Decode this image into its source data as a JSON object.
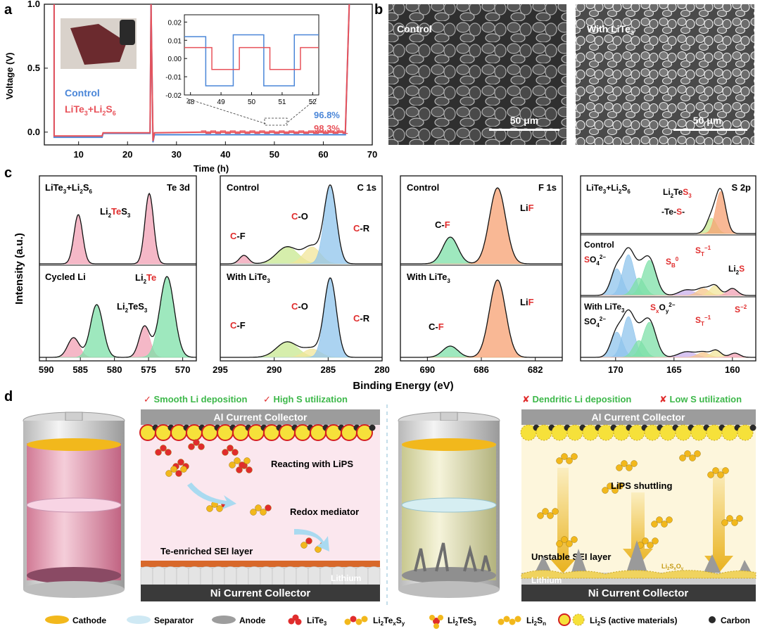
{
  "panel_labels": {
    "a": "a",
    "b": "b",
    "c": "c",
    "d": "d"
  },
  "panel_a": {
    "ylabel": "Voltage (V)",
    "xlabel": "Time (h)",
    "yticks": [
      "0.0",
      "0.5",
      "1.0"
    ],
    "xticks": [
      "10",
      "20",
      "30",
      "40",
      "50",
      "60",
      "70"
    ],
    "legend": {
      "control": "Control",
      "lite": "LiTe3+Li2S6"
    },
    "ce_control": "96.8%",
    "ce_lite": "98.3%",
    "colors": {
      "control": "#4a86d8",
      "lite": "#e8525a"
    },
    "inset": {
      "yticks": [
        "0.02",
        "0.01",
        "0.00",
        "-0.01",
        "-0.02"
      ],
      "xticks": [
        "48",
        "49",
        "50",
        "51",
        "52"
      ]
    }
  },
  "panel_b": {
    "left_label": "Control",
    "right_label": "With LiTe3",
    "scale_left": "50 μm",
    "scale_right": "50 μm"
  },
  "panel_c": {
    "ylabel": "Intensity (a.u.)",
    "xlabel": "Binding Energy (eV)",
    "te": {
      "top_left": "LiTe3+Li2S6",
      "top_right": "Te 3d",
      "bottom_left": "Cycled Li",
      "xticks": [
        "590",
        "585",
        "580",
        "575",
        "570"
      ]
    },
    "c1s": {
      "top_left": "Control",
      "top_right": "C 1s",
      "bottom_left": "With LiTe3",
      "xticks": [
        "295",
        "290",
        "285",
        "280"
      ]
    },
    "f1s": {
      "top_left": "Control",
      "top_right": "F 1s",
      "bottom_left": "With LiTe3",
      "xticks": [
        "690",
        "686",
        "682"
      ]
    },
    "s2p": {
      "top_left": "LiTe3+Li2S6",
      "top_right": "S 2p",
      "mid_left": "Control",
      "bottom_left": "With LiTe3",
      "xticks": [
        "170",
        "165",
        "160"
      ]
    },
    "peaks": {
      "cf": "C-F",
      "co": "C-O",
      "cr": "C-R",
      "lif": "LiF",
      "tes": "-Te-S-"
    }
  },
  "panel_d": {
    "left_checks": [
      "Smooth Li deposition",
      "High S utilization"
    ],
    "right_crosses": [
      "Dendritic Li deposition",
      "Low S utilization"
    ],
    "al": "Al Current Collector",
    "ni": "Ni Current Collector",
    "left_notes": [
      "Reacting with LiPS",
      "Redox mediator",
      "Te-enriched SEI layer",
      "Lithium"
    ],
    "right_notes": [
      "LiPS shuttling",
      "Unstable SEI layer",
      "Lithium"
    ],
    "legend": [
      "Cathode",
      "Separator",
      "Anode",
      "LiTe3",
      "Li2TexSy",
      "Li2TeS3",
      "Li2Sn",
      "Li2S (active materials)",
      "Carbon"
    ]
  }
}
